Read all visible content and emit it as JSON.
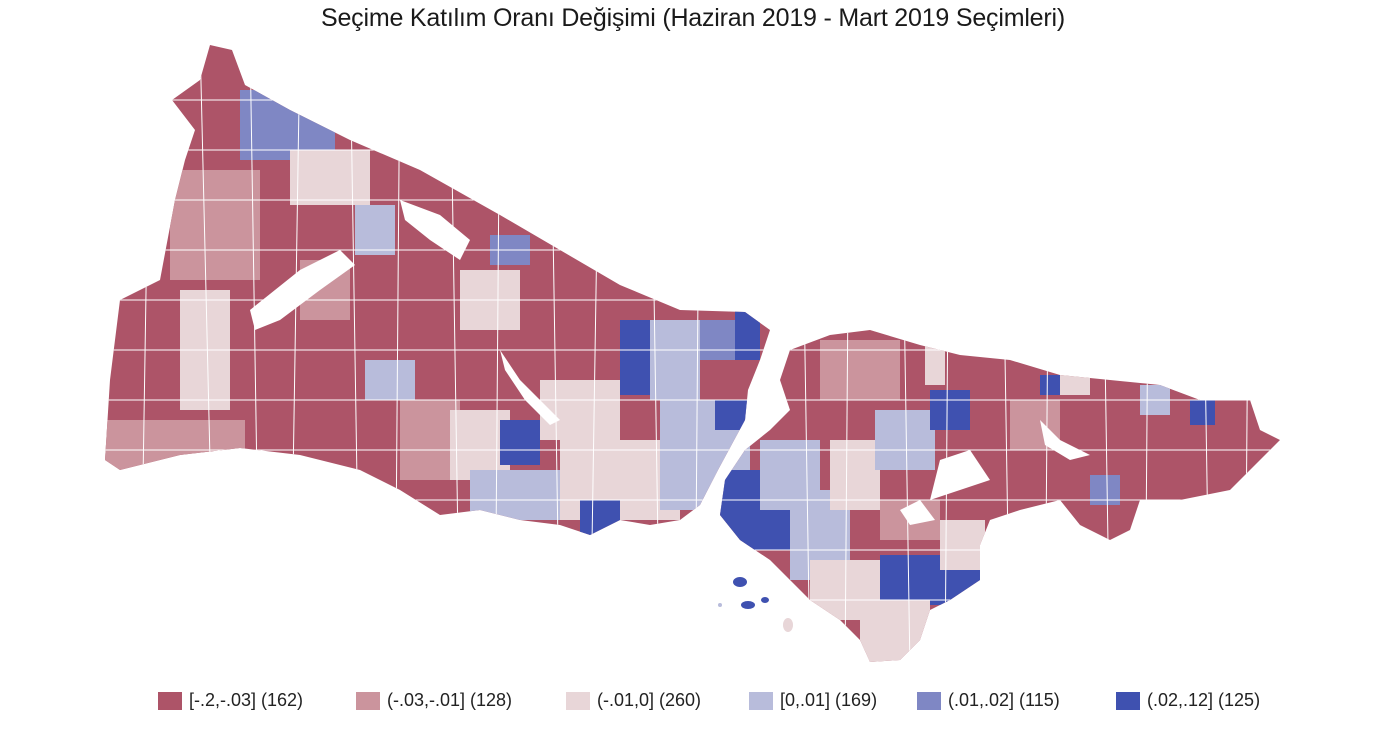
{
  "title": "Seçime Katılım Oranı Değişimi (Haziran 2019 - Mart 2019 Seçimleri)",
  "legend": [
    {
      "label": "[-.2,-.03] (162)",
      "color": "#ad5468"
    },
    {
      "label": "(-.03,-.01] (128)",
      "color": "#cb949d"
    },
    {
      "label": "(-.01,0] (260)",
      "color": "#e8d6d8"
    },
    {
      "label": "[0,.01] (169)",
      "color": "#b8bcdb"
    },
    {
      "label": "(.01,.02] (115)",
      "color": "#7f87c4"
    },
    {
      "label": "(.02,.12] (125)",
      "color": "#3f51b0"
    }
  ]
}
